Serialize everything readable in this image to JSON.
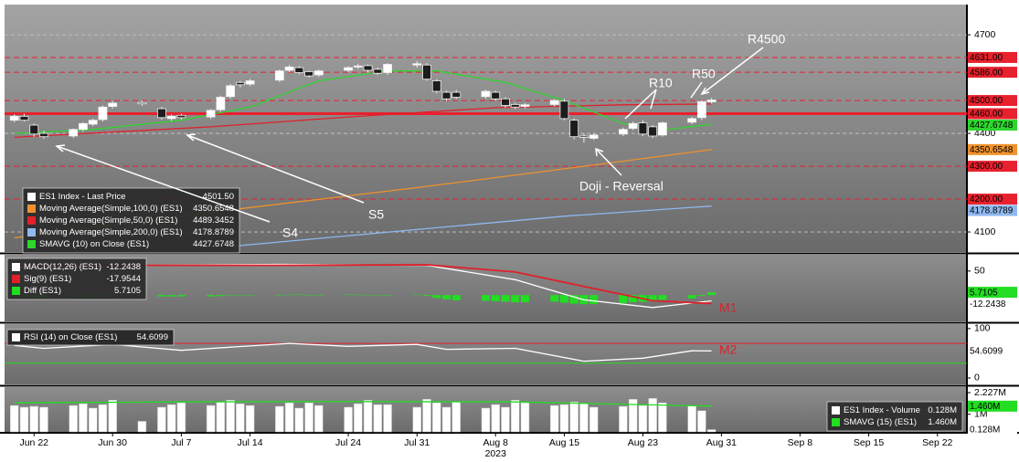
{
  "chart_data": [
    {
      "type": "candlestick",
      "name": "ES1 Index - Last Price",
      "last_label": "4501.50",
      "x": [
        "Jun 20",
        "Jun 21",
        "Jun 22",
        "Jun 23",
        "Jun 26",
        "Jun 27",
        "Jun 28",
        "Jun 29",
        "Jun 30",
        "Jul 3",
        "Jul 5",
        "Jul 6",
        "Jul 7",
        "Jul 10",
        "Jul 11",
        "Jul 12",
        "Jul 13",
        "Jul 14",
        "Jul 17",
        "Jul 18",
        "Jul 19",
        "Jul 20",
        "Jul 21",
        "Jul 24",
        "Jul 25",
        "Jul 26",
        "Jul 27",
        "Jul 28",
        "Jul 31",
        "Aug 1",
        "Aug 2",
        "Aug 3",
        "Aug 4",
        "Aug 7",
        "Aug 8",
        "Aug 9",
        "Aug 10",
        "Aug 11",
        "Aug 14",
        "Aug 15",
        "Aug 16",
        "Aug 17",
        "Aug 18",
        "Aug 21",
        "Aug 22",
        "Aug 23",
        "Aug 24",
        "Aug 25",
        "Aug 28",
        "Aug 29",
        "Aug 30"
      ],
      "open": [
        4440,
        4452,
        4425,
        4400,
        4392,
        4412,
        4428,
        4442,
        4482,
        4494,
        4475,
        4445,
        4455,
        4450,
        4472,
        4512,
        4555,
        4550,
        4562,
        4592,
        4600,
        4588,
        4578,
        4592,
        4602,
        4606,
        4595,
        4585,
        4608,
        4608,
        4560,
        4525,
        4525,
        4512,
        4525,
        4505,
        4488,
        4482,
        4488,
        4498,
        4440,
        4392,
        4385,
        4398,
        4415,
        4432,
        4420,
        4395,
        4434,
        4448,
        4496
      ],
      "high": [
        4458,
        4460,
        4430,
        4408,
        4415,
        4434,
        4445,
        4485,
        4498,
        4500,
        4480,
        4458,
        4460,
        4474,
        4515,
        4550,
        4560,
        4566,
        4594,
        4608,
        4605,
        4592,
        4594,
        4604,
        4612,
        4610,
        4600,
        4614,
        4620,
        4614,
        4565,
        4530,
        4532,
        4533,
        4530,
        4510,
        4493,
        4492,
        4504,
        4505,
        4445,
        4400,
        4400,
        4418,
        4436,
        4440,
        4425,
        4436,
        4450,
        4502,
        4508
      ],
      "low": [
        4434,
        4436,
        4390,
        4384,
        4386,
        4406,
        4422,
        4436,
        4476,
        4484,
        4442,
        4438,
        4442,
        4444,
        4466,
        4506,
        4540,
        4544,
        4556,
        4586,
        4580,
        4570,
        4572,
        4586,
        4596,
        4586,
        4578,
        4578,
        4600,
        4560,
        4522,
        4498,
        4504,
        4506,
        4500,
        4478,
        4474,
        4476,
        4482,
        4440,
        4382,
        4372,
        4380,
        4392,
        4410,
        4392,
        4386,
        4390,
        4428,
        4440,
        4490
      ],
      "close": [
        4452,
        4440,
        4398,
        4390,
        4412,
        4430,
        4440,
        4480,
        4492,
        4490,
        4448,
        4452,
        4448,
        4470,
        4510,
        4545,
        4548,
        4560,
        4590,
        4602,
        4585,
        4575,
        4590,
        4600,
        4605,
        4592,
        4583,
        4610,
        4612,
        4565,
        4528,
        4505,
        4510,
        4528,
        4505,
        4485,
        4480,
        4487,
        4500,
        4445,
        4390,
        4388,
        4395,
        4412,
        4430,
        4398,
        4392,
        4432,
        4445,
        4497,
        4501.5
      ],
      "up_color": "#ffffff",
      "down_color": "#1c1c1c",
      "ylim": [
        4039,
        4792
      ],
      "yticks": [
        4100,
        4400,
        4700
      ],
      "grid": true,
      "level_color": "#e8212e",
      "levels": [
        {
          "value": 4631,
          "label": "4631.00",
          "line_style": "dashed"
        },
        {
          "value": 4586,
          "label": "4586.00",
          "line_style": "dashed"
        },
        {
          "value": 4500,
          "label": "4500.00",
          "line_style": "dashed"
        },
        {
          "value": 4460,
          "label": "4460.00",
          "line_style": "solid"
        },
        {
          "value": 4300,
          "label": "4300.00",
          "line_style": "dashed"
        },
        {
          "value": 4200,
          "label": "4200.00",
          "line_style": "dashed"
        }
      ],
      "series": [
        {
          "name": "Moving Average(Simple,100,0) (ES1)",
          "color": "#f0922b",
          "show_tag": true,
          "x": [
            "Jun 20",
            "Jul 10",
            "Jul 31",
            "Aug 15",
            "Aug 30"
          ],
          "values": [
            4082,
            4160,
            4235,
            4292,
            4350.6548
          ]
        },
        {
          "name": "Moving Average(Simple,50,0) (ES1)",
          "color": "#e0202a",
          "show_tag": false,
          "x": [
            "Jun 20",
            "Jul 10",
            "Jul 24",
            "Aug 8",
            "Aug 21",
            "Aug 30"
          ],
          "values": [
            4388,
            4420,
            4450,
            4478,
            4487,
            4489.3452
          ]
        },
        {
          "name": "Moving Average(Simple,200,0) (ES1)",
          "color": "#8fb8f0",
          "show_tag": true,
          "x": [
            "Jul 12",
            "Aug 1",
            "Aug 15",
            "Aug 30"
          ],
          "values": [
            4056,
            4110,
            4148,
            4178.8789
          ]
        },
        {
          "name": "SMAVG (10) on Close (ES1)",
          "color": "#2ed62e",
          "show_tag": true,
          "x": [
            "Jun 20",
            "Jun 28",
            "Jul 7",
            "Jul 14",
            "Jul 21",
            "Jul 28",
            "Aug 2",
            "Aug 9",
            "Aug 15",
            "Aug 21",
            "Aug 25",
            "Aug 30"
          ],
          "values": [
            4400,
            4412,
            4440,
            4480,
            4560,
            4590,
            4590,
            4555,
            4500,
            4430,
            4410,
            4427.6748
          ]
        }
      ],
      "annotations": [
        "R4500",
        "R50",
        "R10",
        "Doji - Reversal",
        "S5",
        "S4"
      ]
    },
    {
      "type": "macd",
      "series": [
        {
          "name": "MACD(12,26) (ES1)",
          "color": "#ffffff",
          "x": [
            "Jun 20",
            "Jul 3",
            "Jul 17",
            "Aug 1",
            "Aug 10",
            "Aug 17",
            "Aug 24",
            "Aug 30"
          ],
          "values": [
            58,
            62,
            64,
            62,
            32,
            -10,
            -26,
            -12.2438
          ]
        },
        {
          "name": "Sig(9) (ES1)",
          "color": "#e0202a",
          "x": [
            "Jun 20",
            "Jul 3",
            "Jul 17",
            "Aug 1",
            "Aug 10",
            "Aug 17",
            "Aug 24",
            "Aug 30"
          ],
          "values": [
            62,
            62,
            62,
            63,
            48,
            18,
            -12,
            -17.9544
          ]
        }
      ],
      "histogram": {
        "name": "Diff (ES1)",
        "color": "#22dd22",
        "values": [
          -3,
          -4,
          -5,
          -5,
          -5,
          -4,
          -4,
          -3,
          -2,
          -2,
          -3,
          -3,
          -3,
          -3,
          -2,
          -1,
          -1,
          -1,
          0,
          1,
          1,
          0,
          0,
          1,
          1,
          0,
          -1,
          0,
          1,
          -2,
          -6,
          -9,
          -11,
          -12,
          -13,
          -14,
          -15,
          -15,
          -14,
          -16,
          -18,
          -19,
          -19,
          -17,
          -15,
          -14,
          -13,
          -10,
          -7,
          -2,
          5.7105
        ]
      },
      "ylim": [
        -55,
        84
      ],
      "yticks": [
        50
      ],
      "annotation": "M1"
    },
    {
      "type": "line",
      "series": [
        {
          "name": "RSI (14)  on Close (ES1)",
          "color": "#ffffff",
          "x": [
            "Jun 20",
            "Jun 23",
            "Jun 30",
            "Jul 7",
            "Jul 18",
            "Jul 24",
            "Jul 31",
            "Aug 3",
            "Aug 10",
            "Aug 17",
            "Aug 23",
            "Aug 28",
            "Aug 30"
          ],
          "values": [
            66,
            60,
            68,
            56,
            70,
            64,
            68,
            58,
            60,
            34,
            40,
            55,
            54.6099
          ]
        }
      ],
      "bands": [
        {
          "value": 70,
          "color": "#e0202a"
        },
        {
          "value": 30,
          "color": "#22dd22"
        }
      ],
      "ylim": [
        -13,
        109
      ],
      "yticks": [
        0,
        100
      ],
      "annotation": "M2"
    },
    {
      "type": "bar",
      "name": "ES1 Index - Volume",
      "last_value_label": "0.128M",
      "color": "#ffffff",
      "values": [
        1500000,
        1400000,
        1450000,
        1400000,
        1500000,
        1600000,
        1350000,
        1550000,
        1800000,
        600000,
        1400000,
        1550000,
        1650000,
        1500000,
        1700000,
        1800000,
        1600000,
        1500000,
        1450000,
        1650000,
        1350000,
        1650000,
        1500000,
        1400000,
        1600000,
        1800000,
        1550000,
        1550000,
        1400000,
        1850000,
        1650000,
        1400000,
        1700000,
        1350000,
        1550000,
        1400000,
        1800000,
        1650000,
        1500000,
        1550000,
        1700000,
        1600000,
        1400000,
        1450000,
        1850000,
        1500000,
        1900000,
        1650000,
        1500000,
        1200000,
        128000
      ],
      "series": [
        {
          "name": "SMAVG (15) (ES1)",
          "color": "#22dd22",
          "last_value_label": "1.460M",
          "x": [
            "Jun 20",
            "Jul 7",
            "Jul 24",
            "Aug 10",
            "Aug 30"
          ],
          "values": [
            1650000,
            1700000,
            1720000,
            1700000,
            1460000
          ]
        }
      ],
      "ylim": [
        0,
        2540000
      ],
      "yticks": [
        {
          "value": 1000000,
          "label": "1M"
        },
        {
          "value": 2227000,
          "label": "2.227M"
        }
      ],
      "xlim": [
        "Jun 19",
        "Sep 25"
      ],
      "xticks": [
        "Jun 22",
        "Jun 30",
        "Jul 7",
        "Jul 14",
        "Jul 24",
        "Jul 31",
        "Aug 8",
        "Aug 15",
        "Aug 23",
        "Aug 31",
        "Sep 8",
        "Sep 15",
        "Sep 22"
      ],
      "year": "2023"
    }
  ]
}
